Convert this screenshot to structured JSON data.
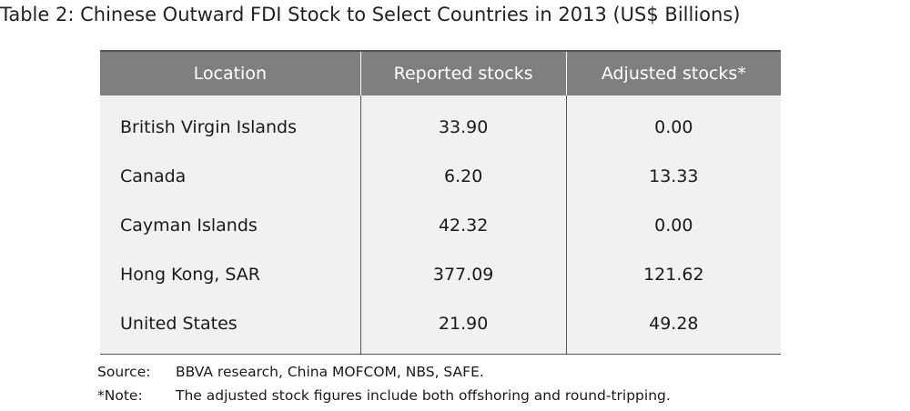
{
  "header": {
    "title": "Table 2: Chinese Outward FDI Stock to Select Countries in 2013 (US$ Billions)"
  },
  "table": {
    "columns": [
      "Location",
      "Reported stocks",
      "Adjusted stocks*"
    ],
    "rows": [
      [
        "British Virgin Islands",
        "33.90",
        "0.00"
      ],
      [
        "Canada",
        "6.20",
        "13.33"
      ],
      [
        "Cayman Islands",
        "42.32",
        "0.00"
      ],
      [
        "Hong Kong, SAR",
        "377.09",
        "121.62"
      ],
      [
        "United States",
        "21.90",
        "49.28"
      ]
    ]
  },
  "notes": [
    {
      "label": "Source:",
      "text": "BBVA research, China MOFCOM, NBS, SAFE."
    },
    {
      "label": "*Note:",
      "text": "The adjusted stock figures include both offshoring and round-tripping."
    }
  ]
}
